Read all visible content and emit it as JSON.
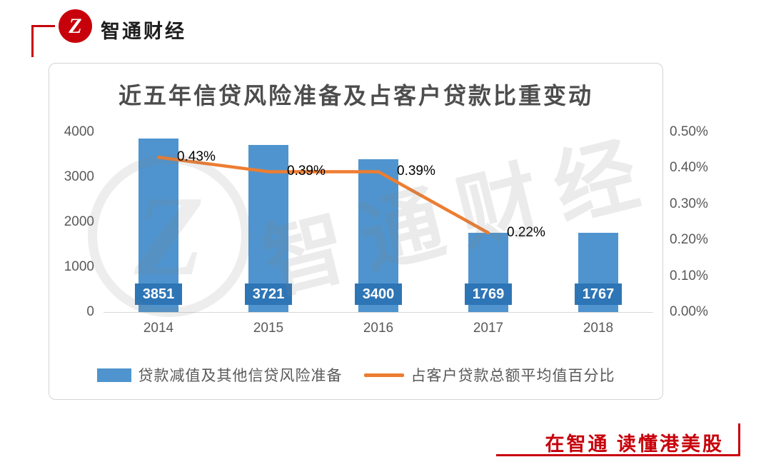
{
  "header": {
    "brand_name": "智通财经",
    "logo_glyph": "Z"
  },
  "footer": {
    "slogan": "在智通  读懂港美股"
  },
  "colors": {
    "accent": "#c7000b",
    "bar": "#4f94ce",
    "bar_label_bg": "#2e75b6",
    "line": "#ed7d31",
    "axis_text": "#595959",
    "title_text": "#4d4d4d",
    "point_label": "#000000"
  },
  "chart_data": {
    "type": "bar+line",
    "title": "近五年信贷风险准备及占客户贷款比重变动",
    "categories": [
      "2014",
      "2015",
      "2016",
      "2017",
      "2018"
    ],
    "series": [
      {
        "name": "贷款减值及其他信贷风险准备",
        "type": "bar",
        "color": "#4f94ce",
        "values": [
          3851,
          3721,
          3400,
          1769,
          1767
        ],
        "value_labels": [
          "3851",
          "3721",
          "3400",
          "1769",
          "1767"
        ]
      },
      {
        "name": "占客户贷款总额平均值百分比",
        "type": "line",
        "color": "#ed7d31",
        "values": [
          0.43,
          0.39,
          0.39,
          0.22,
          null
        ],
        "point_labels": [
          "0.43%",
          "0.39%",
          "0.39%",
          "0.22%",
          ""
        ]
      }
    ],
    "left_axis": {
      "min": 0,
      "max": 4000,
      "ticks": [
        "4000",
        "3000",
        "2000",
        "1000",
        "0"
      ]
    },
    "right_axis": {
      "min": 0,
      "max": 0.5,
      "ticks": [
        "0.50%",
        "0.40%",
        "0.30%",
        "0.20%",
        "0.10%",
        "0.00%"
      ]
    },
    "legend_position": "bottom",
    "grid": false,
    "watermark": "智通财经"
  }
}
